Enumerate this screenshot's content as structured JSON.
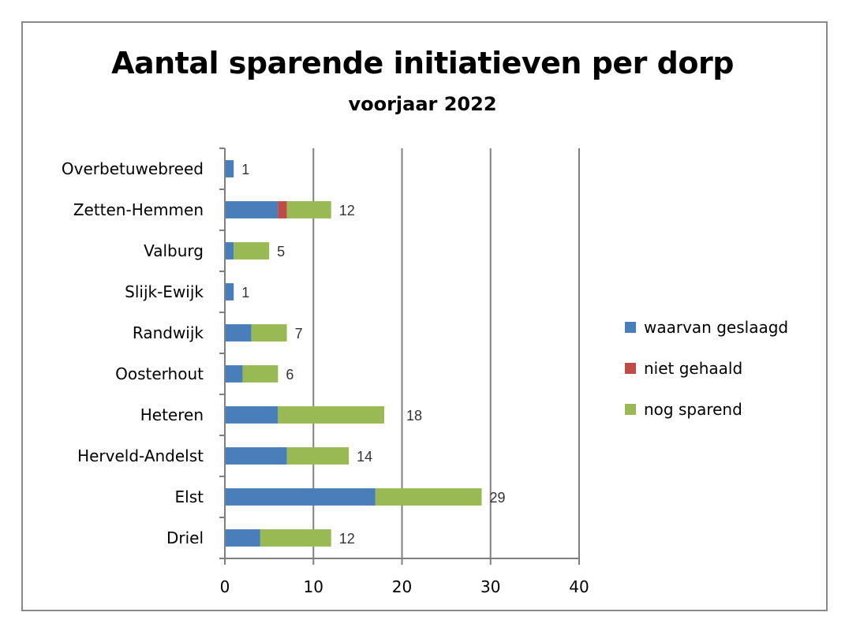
{
  "chart_data": {
    "type": "bar",
    "orientation": "horizontal",
    "stacked": true,
    "title": "Aantal sparende initiatieven per dorp",
    "subtitle": "voorjaar 2022",
    "xlabel": "",
    "ylabel": "",
    "xlim": [
      0,
      40
    ],
    "xticks": [
      0,
      10,
      20,
      30,
      40
    ],
    "grid": true,
    "legend_position": "right",
    "categories": [
      "Overbetuwebreed",
      "Zetten-Hemmen",
      "Valburg",
      "Slijk-Ewijk",
      "Randwijk",
      "Oosterhout",
      "Heteren",
      "Herveld-Andelst",
      "Elst",
      "Driel"
    ],
    "series": [
      {
        "name": "waarvan geslaagd",
        "color": "#4a7ebb",
        "values": [
          1,
          6,
          1,
          1,
          3,
          2,
          6,
          7,
          17,
          4
        ]
      },
      {
        "name": "niet gehaald",
        "color": "#be4b48",
        "values": [
          0,
          1,
          0,
          0,
          0,
          0,
          0,
          0,
          0,
          0
        ]
      },
      {
        "name": "nog sparend",
        "color": "#98b954",
        "values": [
          0,
          5,
          4,
          0,
          4,
          4,
          12,
          7,
          12,
          8
        ]
      }
    ],
    "totals": [
      1,
      12,
      5,
      1,
      7,
      6,
      18,
      14,
      29,
      12
    ]
  }
}
